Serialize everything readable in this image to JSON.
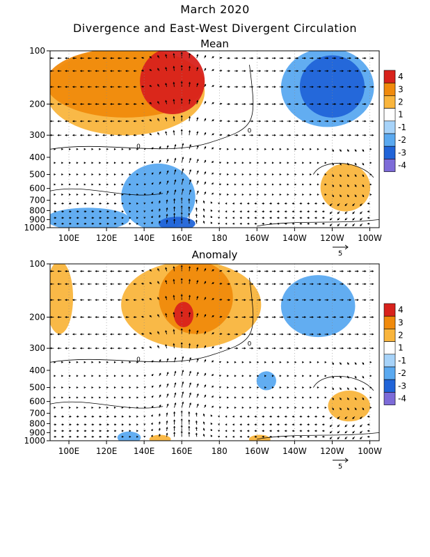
{
  "figure": {
    "title": "March 2020",
    "subtitle": "Divergence and East-West Divergent Circulation"
  },
  "chart_data": [
    {
      "type": "heatmap",
      "title": "Mean",
      "x_ticks": [
        "100E",
        "120E",
        "140E",
        "160E",
        "180",
        "160W",
        "140W",
        "120W",
        "100W"
      ],
      "x_lon": [
        100,
        120,
        140,
        160,
        180,
        200,
        220,
        240,
        260
      ],
      "xlim": [
        90,
        265
      ],
      "y_ticks": [
        "100",
        "200",
        "300",
        "400",
        "500",
        "600",
        "700",
        "800",
        "900",
        "1000"
      ],
      "y_levels": [
        100,
        200,
        300,
        400,
        500,
        600,
        700,
        800,
        900,
        1000
      ],
      "ylim": [
        100,
        1000
      ],
      "y_scale": "log-pressure",
      "legend": {
        "placement": "right",
        "labels": [
          "4",
          "3",
          "2",
          "1",
          "-1",
          "-2",
          "-3",
          "-4"
        ],
        "colors": [
          "#d8221c",
          "#f08a0c",
          "#f9b53d",
          "#ffffff",
          "#a7d3f9",
          "#5aa9f0",
          "#2164d8",
          "#7d6bd8"
        ]
      },
      "contour_label": "0",
      "vector_scale_label": "5",
      "regions": [
        {
          "lon": [
            90,
            170
          ],
          "p": [
            100,
            290
          ],
          "value": 2
        },
        {
          "lon": [
            90,
            170
          ],
          "p": [
            100,
            230
          ],
          "value": 3
        },
        {
          "lon": [
            140,
            170
          ],
          "p": [
            100,
            220
          ],
          "value": 4
        },
        {
          "lon": [
            215,
            260
          ],
          "p": [
            100,
            260
          ],
          "value": -2
        },
        {
          "lon": [
            225,
            255
          ],
          "p": [
            110,
            230
          ],
          "value": -3
        },
        {
          "lon": [
            236,
            258
          ],
          "p": [
            450,
            780
          ],
          "value": 2
        },
        {
          "lon": [
            130,
            165
          ],
          "p": [
            450,
            1000
          ],
          "value": -2
        },
        {
          "lon": [
            90,
            130
          ],
          "p": [
            800,
            1000
          ],
          "value": -2
        },
        {
          "lon": [
            150,
            165
          ],
          "p": [
            900,
            1000
          ],
          "value": -3
        }
      ]
    },
    {
      "type": "heatmap",
      "title": "Anomaly",
      "x_ticks": [
        "100E",
        "120E",
        "140E",
        "160E",
        "180",
        "160W",
        "140W",
        "120W",
        "100W"
      ],
      "x_lon": [
        100,
        120,
        140,
        160,
        180,
        200,
        220,
        240,
        260
      ],
      "xlim": [
        90,
        265
      ],
      "y_ticks": [
        "100",
        "200",
        "300",
        "400",
        "500",
        "600",
        "700",
        "800",
        "900",
        "1000"
      ],
      "y_levels": [
        100,
        200,
        300,
        400,
        500,
        600,
        700,
        800,
        900,
        1000
      ],
      "ylim": [
        100,
        1000
      ],
      "y_scale": "log-pressure",
      "legend": {
        "placement": "right",
        "labels": [
          "4",
          "3",
          "2",
          "1",
          "-1",
          "-2",
          "-3",
          "-4"
        ],
        "colors": [
          "#d8221c",
          "#f08a0c",
          "#f9b53d",
          "#ffffff",
          "#a7d3f9",
          "#5aa9f0",
          "#2164d8",
          "#7d6bd8"
        ]
      },
      "contour_label": "0",
      "vector_scale_label": "5",
      "regions": [
        {
          "lon": [
            130,
            200
          ],
          "p": [
            100,
            290
          ],
          "value": 2
        },
        {
          "lon": [
            150,
            185
          ],
          "p": [
            100,
            240
          ],
          "value": 3
        },
        {
          "lon": [
            158,
            164
          ],
          "p": [
            170,
            220
          ],
          "value": 4
        },
        {
          "lon": [
            90,
            100
          ],
          "p": [
            100,
            240
          ],
          "value": 2
        },
        {
          "lon": [
            215,
            250
          ],
          "p": [
            120,
            250
          ],
          "value": -2
        },
        {
          "lon": [
            240,
            258
          ],
          "p": [
            540,
            750
          ],
          "value": 2
        },
        {
          "lon": [
            202,
            208
          ],
          "p": [
            420,
            500
          ],
          "value": -2
        },
        {
          "lon": [
            128,
            136
          ],
          "p": [
            920,
            1000
          ],
          "value": -2
        },
        {
          "lon": [
            145,
            152
          ],
          "p": [
            960,
            1000
          ],
          "value": 2
        },
        {
          "lon": [
            198,
            205
          ],
          "p": [
            960,
            1000
          ],
          "value": 2
        }
      ]
    }
  ]
}
